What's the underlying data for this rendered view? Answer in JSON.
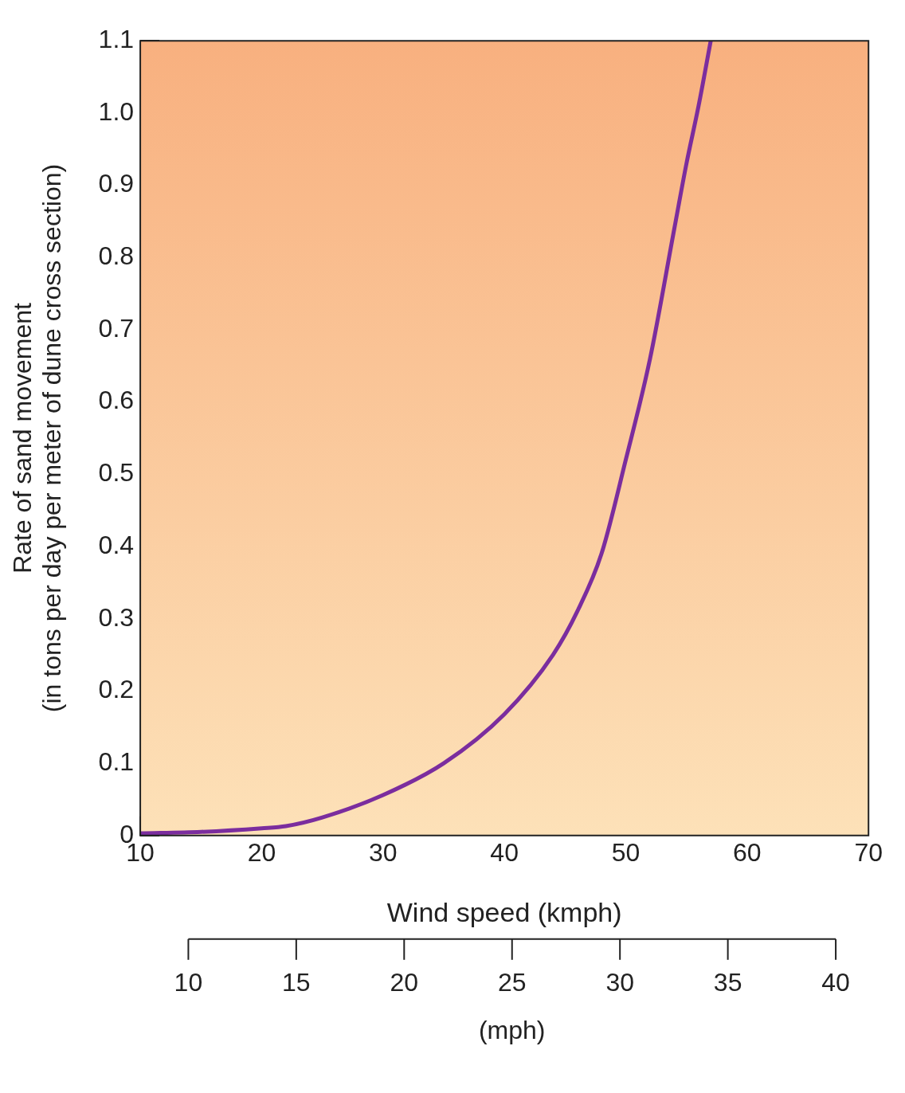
{
  "chart_data": {
    "type": "line",
    "xlabel": "Wind speed (kmph)",
    "ylabel": "Rate of sand movement\n(in tons per day per meter of dune cross section)",
    "x2label": "(mph)",
    "x": [
      10,
      15,
      20,
      22,
      25,
      30,
      35,
      40,
      44,
      46,
      48,
      50,
      52,
      54,
      55,
      56,
      57
    ],
    "series": [
      {
        "color": "#7b2d9e",
        "values": [
          0.003,
          0.005,
          0.01,
          0.013,
          0.025,
          0.056,
          0.1,
          0.168,
          0.25,
          0.31,
          0.39,
          0.52,
          0.66,
          0.84,
          0.93,
          1.01,
          1.1
        ]
      }
    ],
    "xlim": [
      10,
      70
    ],
    "xticks": [
      10,
      20,
      30,
      40,
      50,
      60,
      70
    ],
    "ylim": [
      0,
      1.1
    ],
    "yticks": [
      0,
      0.1,
      0.2,
      0.3,
      0.4,
      0.5,
      0.6,
      0.7,
      0.8,
      0.9,
      {
        "value": 1.0,
        "label": "1.0"
      },
      1.1
    ],
    "x2lim": [
      10,
      40
    ],
    "x2ticks": [
      10,
      15,
      20,
      25,
      30,
      35,
      40
    ],
    "grid": false,
    "legend": false,
    "marker": "none",
    "line_style": "solid"
  }
}
